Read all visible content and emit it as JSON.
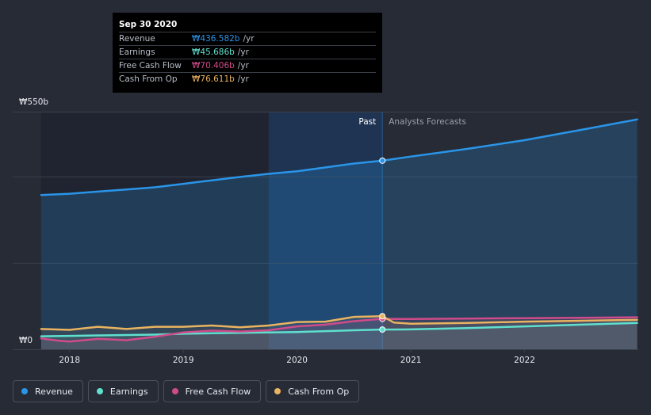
{
  "colors": {
    "revenue": "#2a95e8",
    "earnings": "#5fe0cf",
    "free_cash_flow": "#d04b8a",
    "cash_from_op": "#e9b360",
    "background": "#262b36",
    "past_band": "#1e3452"
  },
  "tooltip": {
    "date": "Sep 30 2020",
    "rows": [
      {
        "label": "Revenue",
        "value": "₩436.582b",
        "unit": "/yr",
        "color": "#2a95e8"
      },
      {
        "label": "Earnings",
        "value": "₩45.686b",
        "unit": "/yr",
        "color": "#5fe0cf"
      },
      {
        "label": "Free Cash Flow",
        "value": "₩70.406b",
        "unit": "/yr",
        "color": "#d04b8a"
      },
      {
        "label": "Cash From Op",
        "value": "₩76.611b",
        "unit": "/yr",
        "color": "#e9b360"
      }
    ]
  },
  "labels": {
    "past": "Past",
    "forecast": "Analysts Forecasts"
  },
  "legend": [
    {
      "label": "Revenue",
      "color": "#2a95e8"
    },
    {
      "label": "Earnings",
      "color": "#5fe0cf"
    },
    {
      "label": "Free Cash Flow",
      "color": "#d04b8a"
    },
    {
      "label": "Cash From Op",
      "color": "#e9b360"
    }
  ],
  "chart_data": {
    "type": "area",
    "title": "",
    "xlabel": "",
    "ylabel": "",
    "x_range": [
      2017.7,
      2022.99
    ],
    "ylim": [
      0,
      550
    ],
    "y_ticks": [
      {
        "value": 550,
        "label": "₩550b"
      },
      {
        "value": 0,
        "label": "₩0"
      }
    ],
    "x_ticks": [
      {
        "value": 2018,
        "label": "2018"
      },
      {
        "value": 2019,
        "label": "2019"
      },
      {
        "value": 2020,
        "label": "2020"
      },
      {
        "value": 2021,
        "label": "2021"
      },
      {
        "value": 2022,
        "label": "2022"
      }
    ],
    "past_band_range": [
      2019.75,
      2020.75
    ],
    "divider_x": 2020.75,
    "highlight_x": 2020.75,
    "series": [
      {
        "name": "Revenue",
        "key": "revenue",
        "points": [
          [
            2017.75,
            357
          ],
          [
            2018.0,
            360
          ],
          [
            2018.25,
            365
          ],
          [
            2018.5,
            370
          ],
          [
            2018.75,
            375
          ],
          [
            2019.0,
            383
          ],
          [
            2019.25,
            391
          ],
          [
            2019.5,
            399
          ],
          [
            2019.75,
            406
          ],
          [
            2020.0,
            412
          ],
          [
            2020.25,
            421
          ],
          [
            2020.5,
            430
          ],
          [
            2020.75,
            436.6
          ],
          [
            2021.0,
            446
          ],
          [
            2021.5,
            464
          ],
          [
            2022.0,
            484
          ],
          [
            2022.5,
            508
          ],
          [
            2022.99,
            532
          ]
        ]
      },
      {
        "name": "Earnings",
        "key": "earnings",
        "points": [
          [
            2017.75,
            30
          ],
          [
            2018.0,
            31
          ],
          [
            2018.25,
            32
          ],
          [
            2018.5,
            33
          ],
          [
            2018.75,
            34
          ],
          [
            2019.0,
            36
          ],
          [
            2019.25,
            37
          ],
          [
            2019.5,
            38
          ],
          [
            2019.75,
            39
          ],
          [
            2020.0,
            40
          ],
          [
            2020.25,
            42
          ],
          [
            2020.5,
            44
          ],
          [
            2020.75,
            45.7
          ],
          [
            2021.0,
            46
          ],
          [
            2021.5,
            49
          ],
          [
            2022.0,
            53
          ],
          [
            2022.5,
            57
          ],
          [
            2022.99,
            61
          ]
        ]
      },
      {
        "name": "Free Cash Flow",
        "key": "free_cash_flow",
        "points": [
          [
            2017.75,
            25
          ],
          [
            2017.9,
            20
          ],
          [
            2018.0,
            18
          ],
          [
            2018.25,
            24
          ],
          [
            2018.5,
            21
          ],
          [
            2018.75,
            29
          ],
          [
            2019.0,
            39
          ],
          [
            2019.25,
            43
          ],
          [
            2019.5,
            41
          ],
          [
            2019.75,
            44
          ],
          [
            2020.0,
            53
          ],
          [
            2020.25,
            57
          ],
          [
            2020.5,
            65
          ],
          [
            2020.75,
            70.4
          ],
          [
            2021.0,
            70
          ],
          [
            2021.5,
            71
          ],
          [
            2022.0,
            72
          ],
          [
            2022.5,
            73
          ],
          [
            2022.99,
            74
          ]
        ]
      },
      {
        "name": "Cash From Op",
        "key": "cash_from_op",
        "points": [
          [
            2017.75,
            47
          ],
          [
            2018.0,
            45
          ],
          [
            2018.25,
            52
          ],
          [
            2018.5,
            47
          ],
          [
            2018.75,
            52
          ],
          [
            2019.0,
            52
          ],
          [
            2019.25,
            55
          ],
          [
            2019.5,
            51
          ],
          [
            2019.75,
            55
          ],
          [
            2020.0,
            63
          ],
          [
            2020.25,
            64
          ],
          [
            2020.5,
            75
          ],
          [
            2020.75,
            76.6
          ],
          [
            2020.85,
            62
          ],
          [
            2021.0,
            59
          ],
          [
            2021.5,
            61
          ],
          [
            2022.0,
            64
          ],
          [
            2022.5,
            66
          ],
          [
            2022.99,
            68
          ]
        ]
      }
    ]
  }
}
